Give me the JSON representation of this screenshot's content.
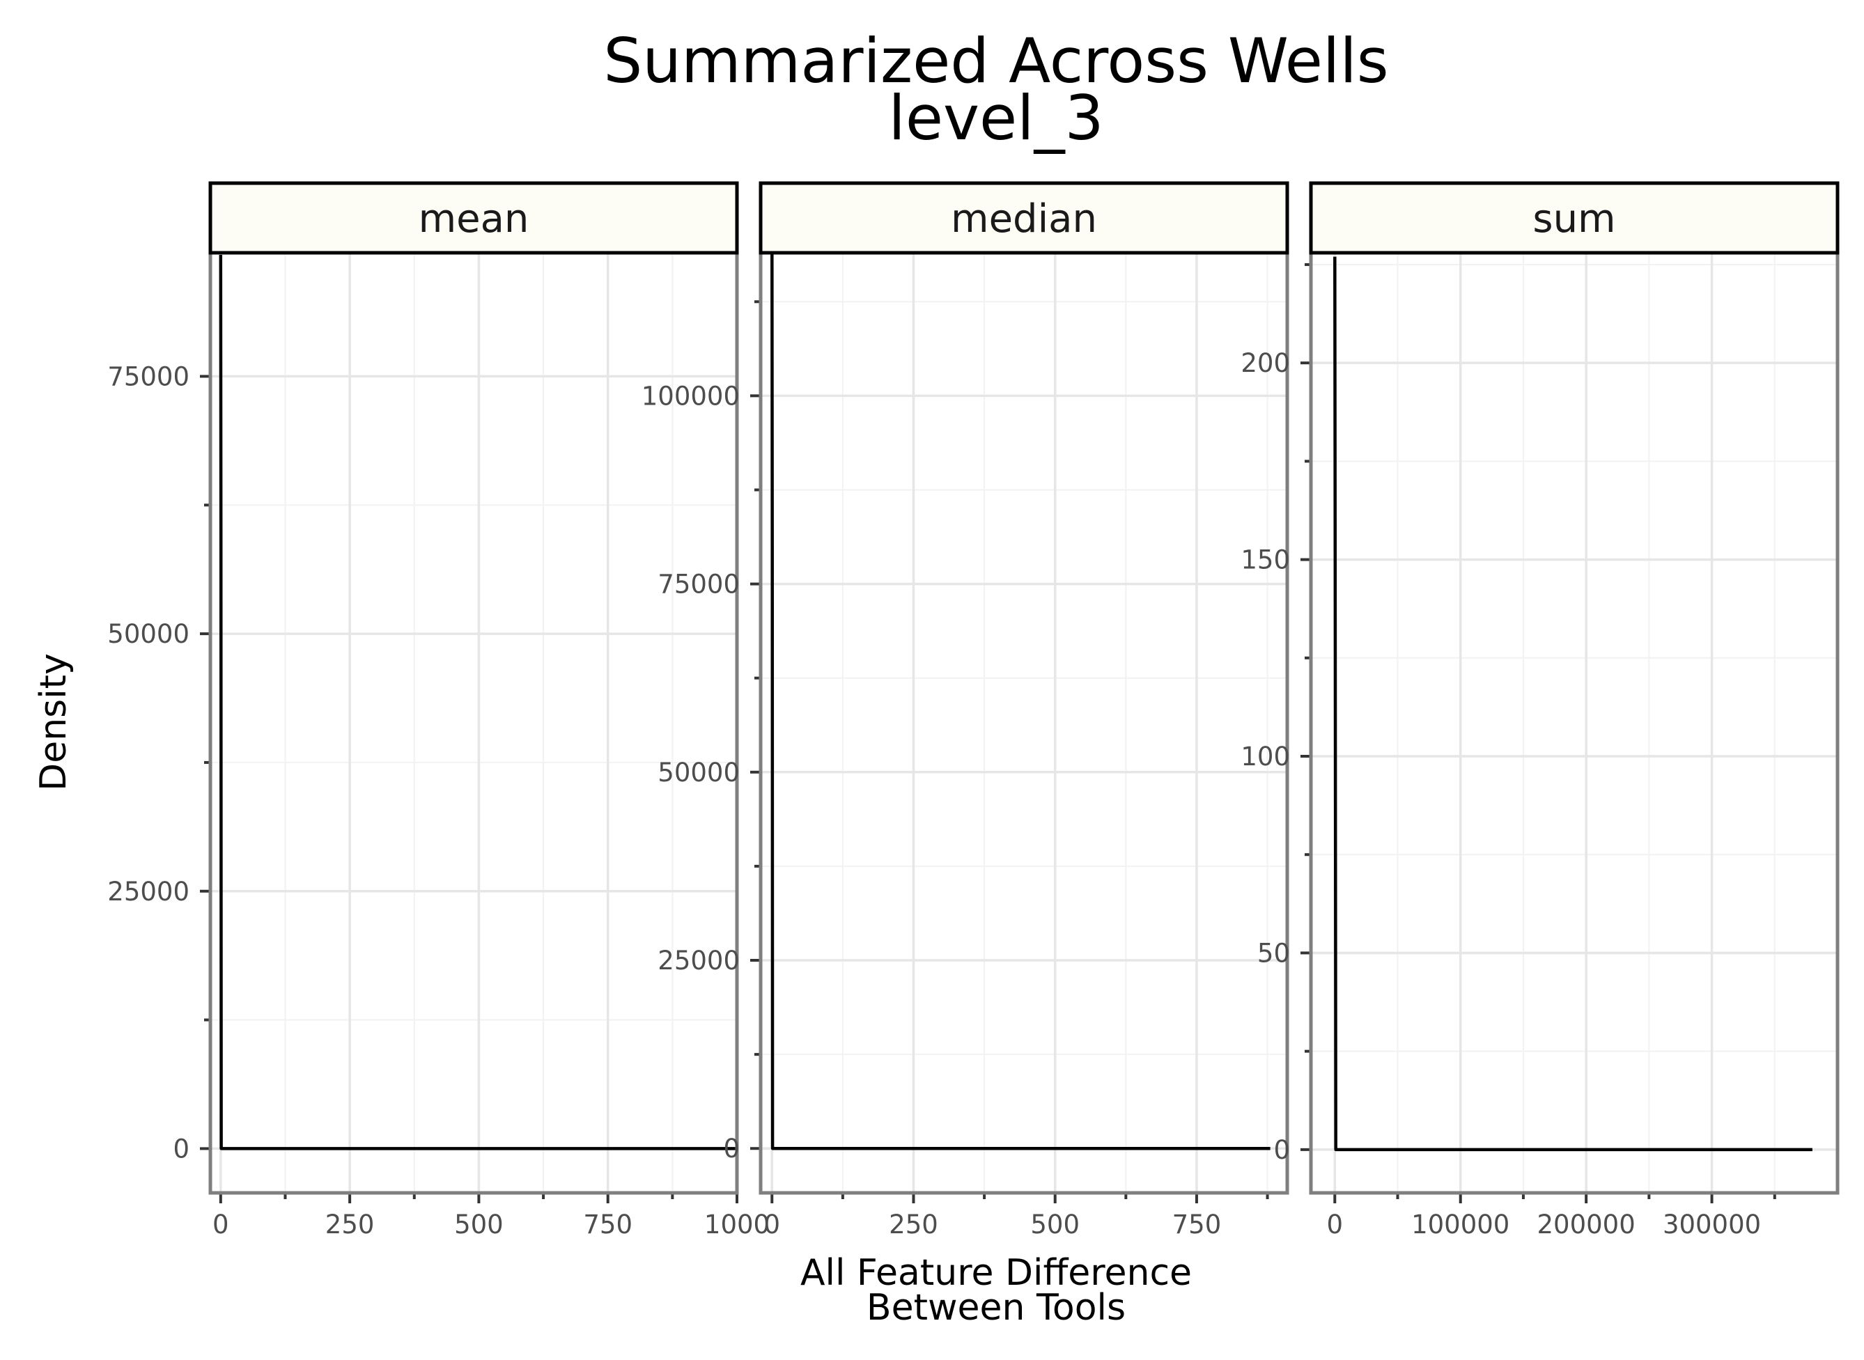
{
  "title": {
    "line1": "Summarized Across Wells",
    "line2": "level_3"
  },
  "xlabel": {
    "line1": "All Feature Difference",
    "line2": "Between Tools"
  },
  "ylabel": "Density",
  "chart_data": {
    "type": "line",
    "title": "Summarized Across Wells level_3",
    "xlabel": "All Feature Difference Between Tools",
    "ylabel": "Density",
    "grid": true,
    "strip_fill": "#fdfdf5",
    "line_color": "#000000",
    "facets": [
      {
        "name": "mean",
        "xlim": [
          -20,
          1000
        ],
        "ylim": [
          -4300,
          87000
        ],
        "x_ticks": [
          0,
          250,
          500,
          750,
          1000
        ],
        "x_tick_labels": [
          "0",
          "250",
          "500",
          "750",
          "1000"
        ],
        "y_ticks": [
          0,
          25000,
          50000,
          75000
        ],
        "y_tick_labels": [
          "0",
          "25000",
          "50000",
          "75000"
        ],
        "series": [
          {
            "x": [
              0,
              0.5,
              1,
              2,
              1000
            ],
            "y": [
              86800,
              60000,
              0,
              0,
              0
            ]
          }
        ]
      },
      {
        "name": "median",
        "xlim": [
          -20,
          910
        ],
        "ylim": [
          -5900,
          119000
        ],
        "x_ticks": [
          0,
          250,
          500,
          750
        ],
        "x_tick_labels": [
          "0",
          "250",
          "500",
          "750"
        ],
        "y_ticks": [
          0,
          25000,
          50000,
          75000,
          100000
        ],
        "y_tick_labels": [
          "0",
          "25000",
          "50000",
          "75000",
          "100000"
        ],
        "series": [
          {
            "x": [
              0,
              0.5,
              1,
              2,
              880
            ],
            "y": [
              118900,
              80000,
              0,
              0,
              0
            ]
          }
        ]
      },
      {
        "name": "sum",
        "xlim": [
          -19000,
          400000
        ],
        "ylim": [
          -11,
          228
        ],
        "x_ticks": [
          0,
          100000,
          200000,
          300000
        ],
        "x_tick_labels": [
          "0",
          "100000",
          "200000",
          "300000"
        ],
        "y_ticks": [
          0,
          50,
          100,
          150,
          200
        ],
        "y_tick_labels": [
          "0",
          "50",
          "100",
          "150",
          "200"
        ],
        "series": [
          {
            "x": [
              0,
              300,
              800,
              2000,
              380000
            ],
            "y": [
              227,
              150,
              0,
              0,
              0
            ]
          }
        ]
      }
    ]
  }
}
